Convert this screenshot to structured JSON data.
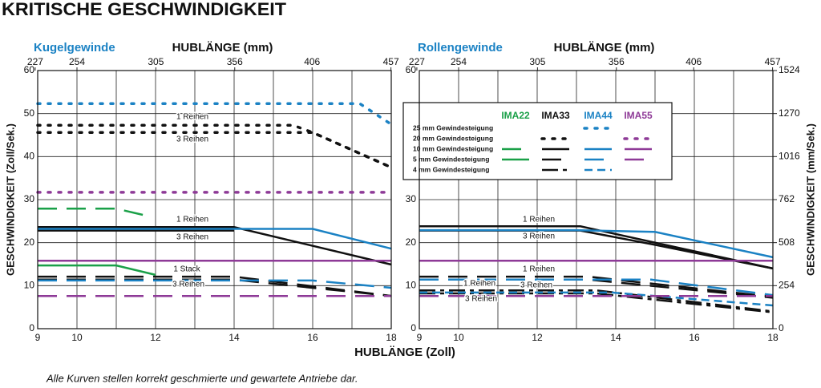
{
  "title": "KRITISCHE GESCHWINDIGKEIT",
  "xlabel": "HUBLÄNGE (Zoll)",
  "footnote": "Alle Kurven stellen korrekt geschmierte und gewartete Antriebe dar.",
  "chart_data": [
    {
      "type": "line",
      "title": "Kugelgewinde",
      "x2label": "HUBLÄNGE (mm)",
      "ylabel": "GESCHWINDIGKEIT (Zoll/Sek.)",
      "xlim": [
        9,
        18
      ],
      "xticks": [
        9,
        10,
        12,
        14,
        16,
        18
      ],
      "xminor": [
        11,
        13,
        15,
        17
      ],
      "x2lim": [
        228.6,
        457.2
      ],
      "x2ticks": [
        227,
        254,
        305,
        356,
        406,
        457
      ],
      "ylim": [
        0,
        60
      ],
      "yticks": [
        0,
        10,
        20,
        30,
        40,
        50,
        60
      ],
      "grid": true,
      "annotations": [
        "1 Reihen",
        "3 Reihen",
        "1 Reihen",
        "3 Reihen",
        "1 Stack",
        "3 Reihen"
      ],
      "series": [
        {
          "color": "#1b82c4",
          "dash": "dotted",
          "x": [
            9,
            17.2,
            18
          ],
          "values": [
            52.3,
            52.3,
            47.5
          ]
        },
        {
          "color": "#111111",
          "dash": "dotted",
          "x": [
            9,
            15.5,
            16,
            18
          ],
          "values": [
            47.3,
            47.3,
            45.6,
            37.5
          ]
        },
        {
          "color": "#111111",
          "dash": "dotted",
          "x": [
            9,
            16,
            18
          ],
          "values": [
            45.6,
            45.6,
            37.5
          ]
        },
        {
          "color": "#8e3a97",
          "dash": "dotted",
          "x": [
            9,
            18
          ],
          "values": [
            31.7,
            31.7
          ]
        },
        {
          "color": "#1aa048",
          "dash": "dashed",
          "x": [
            9,
            11,
            11.7
          ],
          "values": [
            27.9,
            27.9,
            26.4
          ]
        },
        {
          "color": "#111111",
          "dash": "solid",
          "x": [
            9,
            14,
            18
          ],
          "values": [
            23.6,
            23.6,
            14.9
          ]
        },
        {
          "color": "#111111",
          "dash": "solid",
          "x": [
            9,
            14
          ],
          "values": [
            22.8,
            22.8
          ]
        },
        {
          "color": "#1b82c4",
          "dash": "solid",
          "x": [
            9,
            16,
            18
          ],
          "values": [
            23.2,
            23.2,
            18.6
          ]
        },
        {
          "color": "#8e3a97",
          "dash": "solid",
          "x": [
            9,
            18
          ],
          "values": [
            15.8,
            15.8
          ]
        },
        {
          "color": "#1aa048",
          "dash": "solid",
          "x": [
            9,
            11,
            12
          ],
          "values": [
            14.7,
            14.7,
            12.5
          ]
        },
        {
          "color": "#111111",
          "dash": "dashed",
          "x": [
            9,
            14,
            18
          ],
          "values": [
            12.1,
            12.1,
            7.6
          ]
        },
        {
          "color": "#111111",
          "dash": "dashed",
          "x": [
            9,
            14,
            18
          ],
          "values": [
            11.4,
            11.4,
            7.6
          ]
        },
        {
          "color": "#1b82c4",
          "dash": "dashed",
          "x": [
            9,
            16,
            18
          ],
          "values": [
            11.2,
            11.2,
            9.5
          ]
        },
        {
          "color": "#8e3a97",
          "dash": "dashed",
          "x": [
            9,
            18
          ],
          "values": [
            7.6,
            7.6
          ]
        }
      ]
    },
    {
      "type": "line",
      "title": "Rollengewinde",
      "x2label": "HUBLÄNGE (mm)",
      "y2label": "GESCHWINDIGKEIT (mm/Sek.)",
      "xlim": [
        9,
        18
      ],
      "xticks": [
        9,
        10,
        12,
        14,
        16,
        18
      ],
      "xminor": [
        11,
        13,
        15,
        17
      ],
      "x2lim": [
        228.6,
        457.2
      ],
      "x2ticks": [
        227,
        254,
        305,
        356,
        406,
        457
      ],
      "ylim": [
        0,
        60
      ],
      "yticks": [
        0,
        10,
        20,
        30,
        40,
        50,
        60
      ],
      "grid": true,
      "y2lim": [
        0,
        1524
      ],
      "y2ticks": [
        0,
        254,
        508,
        762,
        1016,
        1270,
        1524
      ],
      "annotations": [
        "1 Reihen",
        "3 Reihen",
        "1 Reihen",
        "3 Reihen",
        "1 Reihen",
        "3 Reihen"
      ],
      "series": [
        {
          "color": "#111111",
          "dash": "solid",
          "x": [
            9,
            13.1,
            18
          ],
          "values": [
            23.8,
            23.8,
            14
          ]
        },
        {
          "color": "#111111",
          "dash": "solid",
          "x": [
            9,
            13.1,
            15,
            18
          ],
          "values": [
            22.8,
            22.8,
            19.5,
            14
          ]
        },
        {
          "color": "#1b82c4",
          "dash": "solid",
          "x": [
            9,
            13,
            15,
            18
          ],
          "values": [
            22.9,
            22.9,
            22.5,
            16.6
          ]
        },
        {
          "color": "#8e3a97",
          "dash": "solid",
          "x": [
            9,
            18
          ],
          "values": [
            15.8,
            15.8
          ]
        },
        {
          "color": "#111111",
          "dash": "dashed",
          "x": [
            9,
            13.3,
            18
          ],
          "values": [
            12.1,
            12.1,
            7.4
          ]
        },
        {
          "color": "#111111",
          "dash": "dashed",
          "x": [
            9,
            13.3,
            18
          ],
          "values": [
            11.4,
            11.4,
            7.2
          ]
        },
        {
          "color": "#1b82c4",
          "dash": "dashed",
          "x": [
            9,
            14.9,
            18
          ],
          "values": [
            11.4,
            11.4,
            7.8
          ]
        },
        {
          "color": "#111111",
          "dash": "dashdot",
          "x": [
            9,
            13.5,
            18
          ],
          "values": [
            8.9,
            8.9,
            4
          ]
        },
        {
          "color": "#111111",
          "dash": "dashdot",
          "x": [
            9,
            13.5,
            18
          ],
          "values": [
            8.2,
            8.2,
            3.8
          ]
        },
        {
          "color": "#1b82c4",
          "dash": "shortdash",
          "x": [
            9,
            13.9,
            18
          ],
          "values": [
            8.4,
            8.4,
            5.4
          ]
        },
        {
          "color": "#8e3a97",
          "dash": "dashed",
          "x": [
            9,
            18
          ],
          "values": [
            7.6,
            7.6
          ]
        }
      ],
      "legend": {
        "columns": [
          {
            "name": "IMA22",
            "color": "#1aa048"
          },
          {
            "name": "IMA33",
            "color": "#111111"
          },
          {
            "name": "IMA44",
            "color": "#1b82c4"
          },
          {
            "name": "IMA55",
            "color": "#8e3a97"
          }
        ],
        "rows": [
          {
            "name": "25 mm Gewindesteigung",
            "cells": [
              null,
              null,
              "dotted",
              null
            ]
          },
          {
            "name": "20 mm Gewindesteigung",
            "cells": [
              null,
              "dotted",
              null,
              "dotted"
            ]
          },
          {
            "name": "10 mm Gewindesteigung",
            "cells": [
              "dashed",
              "solid",
              "solid",
              "solid"
            ]
          },
          {
            "name": "5 mm Gewindesteigung",
            "cells": [
              "solid",
              "dashed",
              "dashed",
              "dashed"
            ]
          },
          {
            "name": "4 mm Gewindesteigung",
            "cells": [
              null,
              "dashdot",
              "shortdash",
              null
            ]
          }
        ]
      }
    }
  ]
}
